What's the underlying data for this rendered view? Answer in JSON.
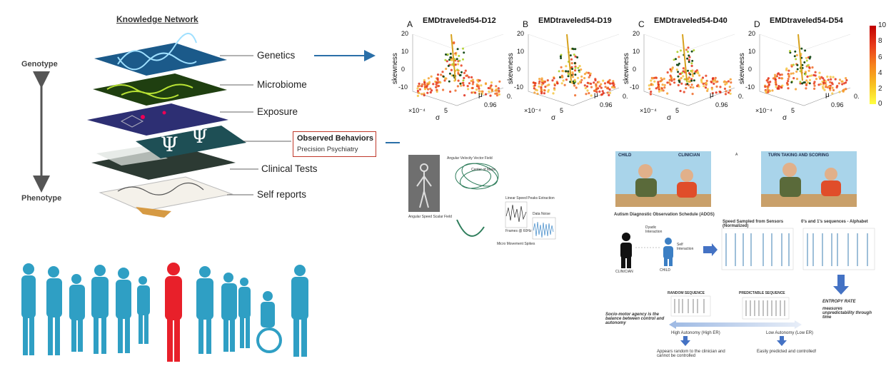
{
  "knowledge_network": {
    "title": "Knowledge Network",
    "genotype": "Genotype",
    "phenotype": "Phenotype",
    "layers": [
      "Genetics",
      "Microbiome",
      "Exposure",
      "Clinical Tests",
      "Self reports"
    ],
    "observed_title": "Observed Behaviors",
    "observed_sub": "Precision Psychiatry"
  },
  "colorbar": {
    "ticks": [
      "10",
      "8",
      "6",
      "4",
      "2",
      "0"
    ],
    "colors": [
      "#c00000",
      "#ffff40"
    ]
  },
  "panels": [
    {
      "letter": "A",
      "title": "EMDtraveled54-D12"
    },
    {
      "letter": "B",
      "title": "EMDtraveled54-D19"
    },
    {
      "letter": "C",
      "title": "EMDtraveled54-D40"
    },
    {
      "letter": "D",
      "title": "EMDtraveled54-D54"
    }
  ],
  "panel_axes": {
    "zlabel": "skewness",
    "zticks": [
      "20",
      "10",
      "0",
      "-10"
    ],
    "xlabel": "σ",
    "xscale": "×10⁻⁴",
    "xtick": "5",
    "ylabel": "μ",
    "ytick": "0.96",
    "ytick2": "0."
  },
  "ados": {
    "child": "CHILD",
    "clinician": "CLINICIAN",
    "turn_taking": "TURN TAKING AND SCORING",
    "a_label": "A",
    "schedule": "Autism Diagnostic Observation Schedule (ADOS)",
    "dyadic": "Dyadic Interaction",
    "self": "Self Interaction",
    "clinician_small": "CLINICIAN",
    "child_small": "CHILD",
    "speed": "Speed Sampled from Sensors (Normalized)",
    "alphabet": "0's and 1's sequences - Alphabet",
    "random": "RANDOM SEQUENCE",
    "predictable": "PREDICTABLE SEQUENCE",
    "entropy_title": "ENTROPY RATE",
    "entropy_text": "measures unpredictability through time",
    "agency": "Socio-motor agency is the balance between control and autonomy",
    "high": "High Autonomy (High ER)",
    "low": "Low Autonomy (Low ER)",
    "high_text": "Appears random to the clinician and cannot be controlled",
    "low_text": "Easily predicted and controlled!"
  },
  "motion": {
    "angular_velocity": "Angular Velocity Vector Field",
    "angular_speed": "Angular Speed Scalar Field",
    "center": "Center of Mass",
    "speed_peaks": "Linear Speed Peaks Extraction",
    "frames": "Frames @ 60Hz",
    "noise": "Micro Movement Spikes",
    "wave": "Data Noise"
  },
  "crowd": {
    "colors": {
      "crowd": "#2f9fc4",
      "highlight": "#e8202a"
    }
  }
}
